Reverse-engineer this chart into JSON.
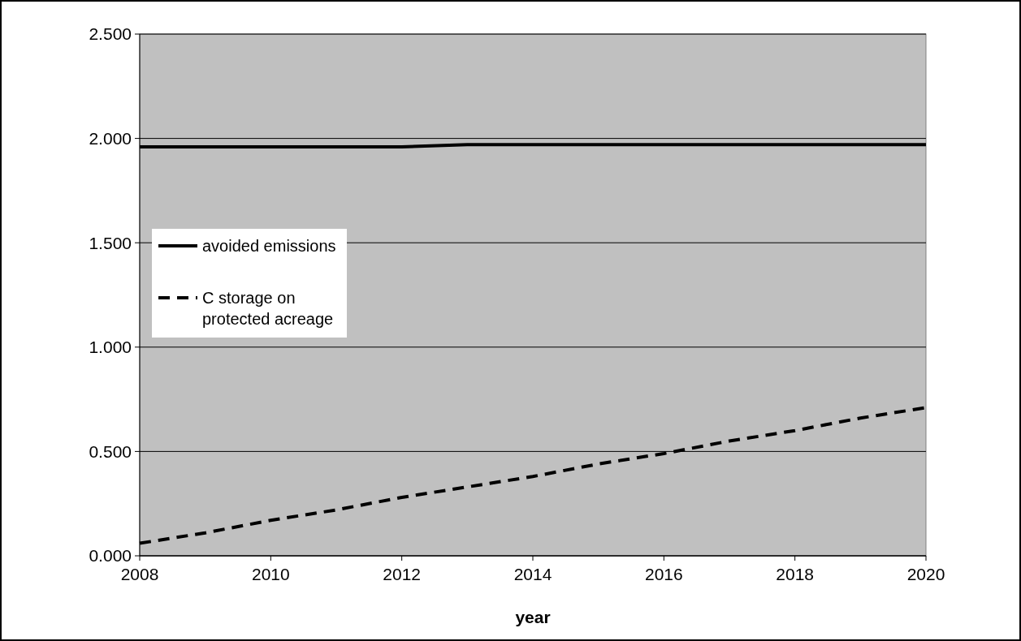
{
  "chart_data": {
    "type": "line",
    "xlabel": "year",
    "x": [
      2008,
      2009,
      2010,
      2011,
      2012,
      2013,
      2014,
      2015,
      2016,
      2017,
      2018,
      2019,
      2020
    ],
    "series": [
      {
        "name": "avoided emissions",
        "color": "#000000",
        "line_style": "solid",
        "values": [
          1.96,
          1.96,
          1.96,
          1.96,
          1.96,
          1.97,
          1.97,
          1.97,
          1.97,
          1.97,
          1.97,
          1.97,
          1.97
        ]
      },
      {
        "name": "C storage on protected acreage",
        "color": "#000000",
        "line_style": "dashed",
        "values": [
          0.06,
          0.11,
          0.17,
          0.22,
          0.28,
          0.33,
          0.38,
          0.44,
          0.49,
          0.55,
          0.6,
          0.66,
          0.71
        ]
      }
    ],
    "xlim": [
      2008,
      2020
    ],
    "xticks": [
      2008,
      2010,
      2012,
      2014,
      2016,
      2018,
      2020
    ],
    "ylim": [
      0,
      2.5
    ],
    "yticks": [
      {
        "value": 0,
        "label": "0.000"
      },
      {
        "value": 0.5,
        "label": "0.500"
      },
      {
        "value": 1,
        "label": "1.000"
      },
      {
        "value": 1.5,
        "label": "1.500"
      },
      {
        "value": 2,
        "label": "2.000"
      },
      {
        "value": 2.5,
        "label": "2.500"
      }
    ],
    "grid": "y",
    "legend": "left",
    "marker": "none"
  }
}
